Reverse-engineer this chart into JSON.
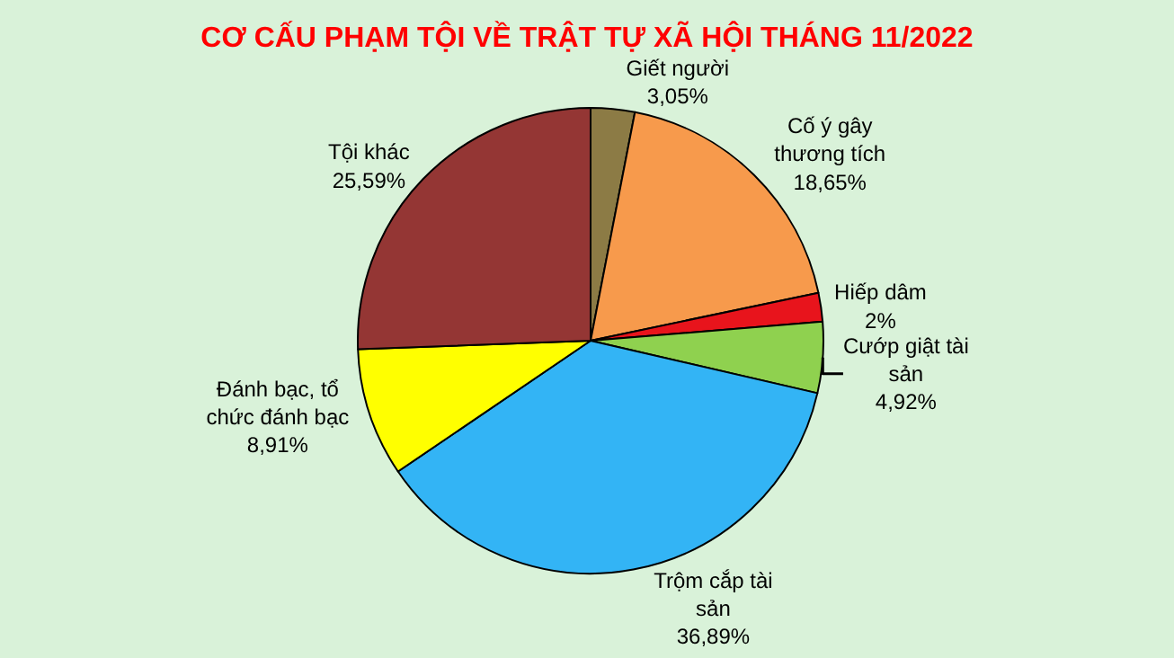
{
  "chart_data": {
    "type": "pie",
    "title": "CƠ CẤU PHẠM TỘI VỀ TRẬT TỰ XÃ HỘI THÁNG 11/2022",
    "categories": [
      "Giết người",
      "Cố ý gây thương tích",
      "Hiếp dâm",
      "Cướp giật tài sản",
      "Trộm cắp tài sản",
      "Đánh bạc, tổ chức đánh bạc",
      "Tội khác"
    ],
    "values": [
      3.05,
      18.65,
      2,
      4.92,
      36.89,
      8.91,
      25.59
    ],
    "value_labels": [
      "3,05%",
      "18,65%",
      "2%",
      "4,92%",
      "36,89%",
      "8,91%",
      "25,59%"
    ],
    "colors": [
      "#8c7b45",
      "#f79a4c",
      "#e8141c",
      "#8fd14f",
      "#33b4f5",
      "#ffff00",
      "#943634"
    ],
    "legend": false
  }
}
